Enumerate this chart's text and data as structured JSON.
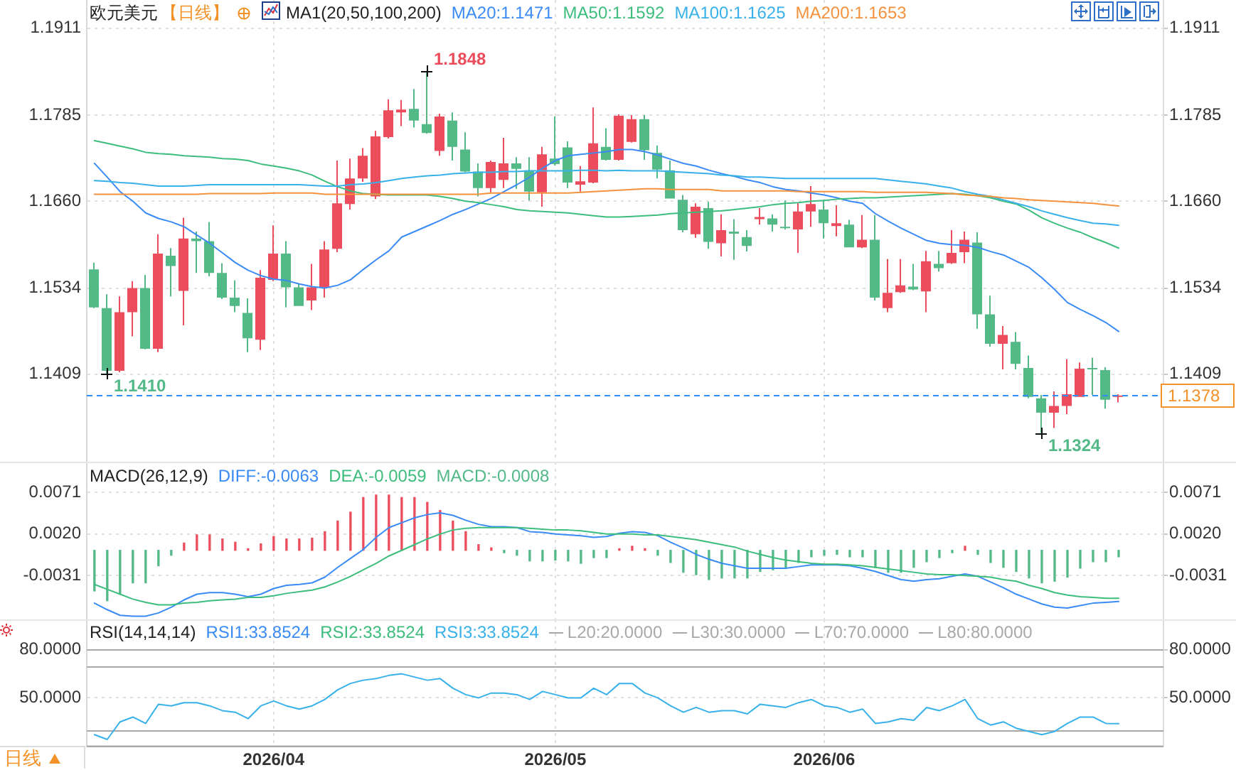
{
  "chart_data": [
    {
      "type": "candlestick",
      "title": "欧元美元",
      "subtitle": "【日线】",
      "legend_title": "MA1(20,50,100,200)",
      "legend": "top",
      "grid": true,
      "tick_labels": "y",
      "categories": [
        null,
        null,
        null,
        null,
        null,
        null,
        null,
        null,
        null,
        null,
        null,
        null,
        null,
        null,
        "2026/04",
        null,
        null,
        null,
        null,
        null,
        null,
        null,
        null,
        null,
        null,
        null,
        null,
        null,
        null,
        null,
        null,
        null,
        null,
        null,
        null,
        null,
        "2026/05",
        null,
        null,
        null,
        null,
        null,
        null,
        null,
        null,
        null,
        null,
        null,
        null,
        null,
        null,
        null,
        null,
        null,
        null,
        null,
        null,
        "2026/06",
        null,
        null,
        null,
        null,
        null,
        null,
        null,
        null,
        null,
        null,
        null,
        null,
        null,
        null,
        null,
        null,
        null,
        null,
        null,
        null,
        null,
        null,
        null
      ],
      "ohlc": [
        [
          1.1561,
          1.1571,
          1.1505,
          1.1506
        ],
        [
          1.1505,
          1.1525,
          1.141,
          1.1414
        ],
        [
          1.1414,
          1.1522,
          1.1412,
          1.1499
        ],
        [
          1.1499,
          1.1544,
          1.1464,
          1.1534
        ],
        [
          1.1534,
          1.1553,
          1.1445,
          1.1446
        ],
        [
          1.1446,
          1.1612,
          1.1441,
          1.1584
        ],
        [
          1.1581,
          1.1592,
          1.1522,
          1.1566
        ],
        [
          1.153,
          1.1636,
          1.148,
          1.1606
        ],
        [
          1.1606,
          1.1616,
          1.1556,
          1.1602
        ],
        [
          1.1602,
          1.163,
          1.1551,
          1.1556
        ],
        [
          1.1556,
          1.157,
          1.1518,
          1.152
        ],
        [
          1.152,
          1.1545,
          1.1499,
          1.1508
        ],
        [
          1.1498,
          1.1519,
          1.1441,
          1.1461
        ],
        [
          1.1459,
          1.156,
          1.1444,
          1.1549
        ],
        [
          1.1546,
          1.1625,
          1.1544,
          1.1584
        ],
        [
          1.1584,
          1.1602,
          1.1506,
          1.1535
        ],
        [
          1.1535,
          1.154,
          1.1508,
          1.1508
        ],
        [
          1.1516,
          1.1569,
          1.1502,
          1.1535
        ],
        [
          1.1535,
          1.1602,
          1.152,
          1.159
        ],
        [
          1.1591,
          1.1719,
          1.1586,
          1.1657
        ],
        [
          1.1656,
          1.1722,
          1.1648,
          1.1693
        ],
        [
          1.1693,
          1.1737,
          1.1688,
          1.1726
        ],
        [
          1.1667,
          1.1762,
          1.1663,
          1.1754
        ],
        [
          1.1753,
          1.1808,
          1.1751,
          1.1792
        ],
        [
          1.1789,
          1.1807,
          1.1769,
          1.1793
        ],
        [
          1.1794,
          1.1823,
          1.1767,
          1.1777
        ],
        [
          1.1772,
          1.1848,
          1.1758,
          1.1759
        ],
        [
          1.1733,
          1.1787,
          1.1726,
          1.1783
        ],
        [
          1.1777,
          1.1789,
          1.1719,
          1.1739
        ],
        [
          1.1735,
          1.176,
          1.1702,
          1.1703
        ],
        [
          1.1703,
          1.1715,
          1.1667,
          1.1679
        ],
        [
          1.1679,
          1.1719,
          1.1673,
          1.1717
        ],
        [
          1.1691,
          1.1752,
          1.1679,
          1.1715
        ],
        [
          1.1715,
          1.1724,
          1.1678,
          1.1707
        ],
        [
          1.1705,
          1.1724,
          1.1661,
          1.1674
        ],
        [
          1.1673,
          1.1739,
          1.1652,
          1.1728
        ],
        [
          1.1722,
          1.1783,
          1.1712,
          1.1714
        ],
        [
          1.1738,
          1.1747,
          1.1679,
          1.1687
        ],
        [
          1.1684,
          1.1711,
          1.1674,
          1.1689
        ],
        [
          1.1687,
          1.1796,
          1.1686,
          1.1744
        ],
        [
          1.1739,
          1.1766,
          1.1719,
          1.172
        ],
        [
          1.172,
          1.1786,
          1.1719,
          1.1784
        ],
        [
          1.1746,
          1.1785,
          1.1745,
          1.1779
        ],
        [
          1.1779,
          1.1785,
          1.172,
          1.1734
        ],
        [
          1.173,
          1.1741,
          1.1693,
          1.1706
        ],
        [
          1.1705,
          1.1719,
          1.1664,
          1.1664
        ],
        [
          1.1662,
          1.1669,
          1.1615,
          1.1618
        ],
        [
          1.1612,
          1.1657,
          1.1607,
          1.1652
        ],
        [
          1.165,
          1.1659,
          1.1591,
          1.1601
        ],
        [
          1.1599,
          1.1641,
          1.158,
          1.1618
        ],
        [
          1.1616,
          1.1634,
          1.1575,
          1.1613
        ],
        [
          1.1608,
          1.1618,
          1.1587,
          1.1595
        ],
        [
          1.1634,
          1.165,
          1.1626,
          1.1637
        ],
        [
          1.1635,
          1.1641,
          1.1616,
          1.1626
        ],
        [
          1.1623,
          1.1661,
          1.1619,
          1.1621
        ],
        [
          1.1619,
          1.1658,
          1.1585,
          1.1645
        ],
        [
          1.1645,
          1.1682,
          1.1623,
          1.1656
        ],
        [
          1.1648,
          1.1662,
          1.1606,
          1.1628
        ],
        [
          1.1624,
          1.1654,
          1.1609,
          1.1628
        ],
        [
          1.1626,
          1.1633,
          1.1593,
          1.1593
        ],
        [
          1.1593,
          1.164,
          1.1592,
          1.1604
        ],
        [
          1.1604,
          1.164,
          1.1516,
          1.152
        ],
        [
          1.1505,
          1.1576,
          1.1499,
          1.1527
        ],
        [
          1.1528,
          1.1576,
          1.1527,
          1.1538
        ],
        [
          1.1536,
          1.1569,
          1.1531,
          1.1532
        ],
        [
          1.1529,
          1.1588,
          1.1499,
          1.1573
        ],
        [
          1.1569,
          1.1588,
          1.1558,
          1.1563
        ],
        [
          1.157,
          1.1618,
          1.1569,
          1.1585
        ],
        [
          1.1586,
          1.1616,
          1.157,
          1.1604
        ],
        [
          1.16,
          1.1615,
          1.1475,
          1.1496
        ],
        [
          1.1496,
          1.1523,
          1.1449,
          1.1453
        ],
        [
          1.1453,
          1.1479,
          1.1416,
          1.1466
        ],
        [
          1.1456,
          1.147,
          1.1416,
          1.1424
        ],
        [
          1.1418,
          1.1436,
          1.1374,
          1.1376
        ],
        [
          1.1374,
          1.1379,
          1.1324,
          1.1353
        ],
        [
          1.1353,
          1.1384,
          1.1331,
          1.1363
        ],
        [
          1.1363,
          1.1431,
          1.1351,
          1.138
        ],
        [
          1.1376,
          1.1426,
          1.1376,
          1.1417
        ],
        [
          1.1418,
          1.1433,
          1.1379,
          1.1416
        ],
        [
          1.1415,
          1.1419,
          1.1359,
          1.1372
        ],
        [
          1.1376,
          1.138,
          1.1368,
          1.1378
        ]
      ],
      "colors": [
        "#52b987",
        "#52b987",
        "#ec4d5c",
        "#ec4d5c",
        "#52b987",
        "#ec4d5c",
        "#52b987",
        "#ec4d5c",
        "#52b987",
        "#52b987",
        "#52b987",
        "#52b987",
        "#52b987",
        "#ec4d5c",
        "#ec4d5c",
        "#52b987",
        "#52b987",
        "#ec4d5c",
        "#ec4d5c",
        "#ec4d5c",
        "#ec4d5c",
        "#ec4d5c",
        "#ec4d5c",
        "#ec4d5c",
        "#ec4d5c",
        "#52b987",
        "#52b987",
        "#ec4d5c",
        "#52b987",
        "#52b987",
        "#52b987",
        "#ec4d5c",
        "#ec4d5c",
        "#52b987",
        "#52b987",
        "#ec4d5c",
        "#52b987",
        "#52b987",
        "#ec4d5c",
        "#ec4d5c",
        "#52b987",
        "#ec4d5c",
        "#ec4d5c",
        "#52b987",
        "#52b987",
        "#52b987",
        "#52b987",
        "#ec4d5c",
        "#52b987",
        "#ec4d5c",
        "#52b987",
        "#52b987",
        "#ec4d5c",
        "#52b987",
        "#52b987",
        "#ec4d5c",
        "#ec4d5c",
        "#52b987",
        "#ec4d5c",
        "#52b987",
        "#ec4d5c",
        "#52b987",
        "#ec4d5c",
        "#ec4d5c",
        "#52b987",
        "#ec4d5c",
        "#52b987",
        "#ec4d5c",
        "#ec4d5c",
        "#52b987",
        "#52b987",
        "#ec4d5c",
        "#52b987",
        "#52b987",
        "#52b987",
        "#ec4d5c",
        "#ec4d5c",
        "#ec4d5c",
        "#52b987",
        "#52b987",
        "#ec4d5c"
      ],
      "series": [
        {
          "name": "MA20:1.1471",
          "type": "line",
          "color": "#3a8bf5",
          "values": [
            1.1715,
            1.1695,
            1.1674,
            1.166,
            1.1643,
            1.1635,
            1.163,
            1.1623,
            1.1611,
            1.1599,
            1.1585,
            1.1571,
            1.156,
            1.1552,
            1.1547,
            1.1545,
            1.154,
            1.1536,
            1.1534,
            1.1538,
            1.1546,
            1.1561,
            1.1575,
            1.1588,
            1.1608,
            1.1616,
            1.1624,
            1.1632,
            1.1641,
            1.1648,
            1.1656,
            1.1664,
            1.1674,
            1.1684,
            1.1695,
            1.1708,
            1.1719,
            1.1726,
            1.1728,
            1.173,
            1.1732,
            1.1735,
            1.1735,
            1.1732,
            1.1727,
            1.1721,
            1.1715,
            1.1711,
            1.1705,
            1.17,
            1.1696,
            1.1691,
            1.1687,
            1.1681,
            1.1677,
            1.1675,
            1.1672,
            1.1669,
            1.1665,
            1.166,
            1.1657,
            1.1642,
            1.1631,
            1.1621,
            1.1612,
            1.1603,
            1.1599,
            1.1597,
            1.1596,
            1.1593,
            1.1587,
            1.1582,
            1.1573,
            1.1564,
            1.1549,
            1.1532,
            1.1513,
            1.1503,
            1.1494,
            1.1484,
            1.1471
          ]
        },
        {
          "name": "MA50:1.1592",
          "type": "line",
          "color": "#3dbd7d",
          "values": [
            1.1748,
            1.1744,
            1.174,
            1.1736,
            1.1731,
            1.1729,
            1.1728,
            1.1726,
            1.1725,
            1.1724,
            1.1722,
            1.1721,
            1.1719,
            1.1714,
            1.1711,
            1.1708,
            1.1704,
            1.1698,
            1.1689,
            1.1681,
            1.1675,
            1.1671,
            1.167,
            1.1669,
            1.1669,
            1.1669,
            1.1669,
            1.1667,
            1.1664,
            1.166,
            1.1658,
            1.1655,
            1.1652,
            1.1648,
            1.1646,
            1.1645,
            1.1644,
            1.1643,
            1.1641,
            1.1639,
            1.1637,
            1.1637,
            1.1638,
            1.1639,
            1.164,
            1.1642,
            1.1643,
            1.1644,
            1.1645,
            1.1646,
            1.1648,
            1.165,
            1.1652,
            1.1655,
            1.1657,
            1.1658,
            1.166,
            1.1661,
            1.1663,
            1.1664,
            1.1665,
            1.1665,
            1.1666,
            1.1667,
            1.1668,
            1.1669,
            1.167,
            1.1671,
            1.167,
            1.1668,
            1.1665,
            1.166,
            1.1656,
            1.1647,
            1.1636,
            1.1628,
            1.1621,
            1.1615,
            1.1607,
            1.16,
            1.1592
          ]
        },
        {
          "name": "MA100:1.1625",
          "type": "line",
          "color": "#38b1ea",
          "values": [
            1.169,
            1.1689,
            1.1687,
            1.1686,
            1.1684,
            1.1682,
            1.1682,
            1.1682,
            1.1683,
            1.1684,
            1.1684,
            1.1684,
            1.1684,
            1.1684,
            1.1684,
            1.1684,
            1.1684,
            1.1683,
            1.1682,
            1.1682,
            1.1684,
            1.1685,
            1.1687,
            1.169,
            1.1693,
            1.1695,
            1.1697,
            1.1698,
            1.17,
            1.1701,
            1.1702,
            1.1702,
            1.1703,
            1.1703,
            1.1704,
            1.1704,
            1.1704,
            1.1704,
            1.1705,
            1.1705,
            1.1704,
            1.1705,
            1.1704,
            1.1704,
            1.1704,
            1.1703,
            1.1702,
            1.1701,
            1.17,
            1.1698,
            1.1697,
            1.1695,
            1.1695,
            1.1694,
            1.1693,
            1.1693,
            1.1693,
            1.1693,
            1.1693,
            1.1693,
            1.1693,
            1.1693,
            1.1691,
            1.1689,
            1.1687,
            1.1685,
            1.1682,
            1.1679,
            1.1674,
            1.167,
            1.1667,
            1.1662,
            1.1657,
            1.1652,
            1.1646,
            1.1641,
            1.1636,
            1.1632,
            1.1628,
            1.1627,
            1.1625
          ]
        },
        {
          "name": "MA200:1.1653",
          "type": "line",
          "color": "#f5923e",
          "values": [
            1.167,
            1.167,
            1.167,
            1.167,
            1.167,
            1.167,
            1.167,
            1.167,
            1.167,
            1.1671,
            1.1671,
            1.1671,
            1.1671,
            1.1671,
            1.1672,
            1.1672,
            1.1672,
            1.1672,
            1.167,
            1.167,
            1.167,
            1.167,
            1.167,
            1.167,
            1.167,
            1.167,
            1.167,
            1.167,
            1.167,
            1.167,
            1.167,
            1.1672,
            1.1672,
            1.1672,
            1.1672,
            1.1672,
            1.1672,
            1.1672,
            1.1673,
            1.1674,
            1.1675,
            1.1676,
            1.1677,
            1.1678,
            1.1678,
            1.1677,
            1.1677,
            1.1677,
            1.1677,
            1.1675,
            1.1675,
            1.1675,
            1.1675,
            1.1675,
            1.1675,
            1.1674,
            1.1674,
            1.1674,
            1.1674,
            1.1674,
            1.1674,
            1.1673,
            1.1673,
            1.1673,
            1.1673,
            1.1673,
            1.1672,
            1.1671,
            1.1669,
            1.1668,
            1.1667,
            1.1665,
            1.1664,
            1.1662,
            1.1661,
            1.166,
            1.1659,
            1.1658,
            1.1657,
            1.1655,
            1.1653
          ]
        }
      ],
      "ylim": [
        1.1282,
        1.1952
      ],
      "yticks": [
        1.1409,
        1.1534,
        {
          "value": 1.166,
          "label": "1.1660"
        },
        1.1785,
        1.1911
      ],
      "y2lim": [
        1.1282,
        1.1952
      ],
      "y2ticks": [
        1.1409,
        1.1534,
        {
          "value": 1.166,
          "label": "1.1660"
        },
        1.1785,
        1.1911
      ],
      "ref_lines": [
        {
          "axis": "y2",
          "value": 1.1378,
          "label": "1.1378",
          "color": "#2f8ef5",
          "line_style": "dashed"
        }
      ],
      "annotations": [
        "1.1848",
        "1.1410",
        "1.1324"
      ]
    },
    {
      "type": "bar",
      "title": "MACD(26,12,9)",
      "legend": "top left",
      "grid": true,
      "tick_labels": "y",
      "categories": [
        null,
        null,
        null,
        null,
        null,
        null,
        null,
        null,
        null,
        null,
        null,
        null,
        null,
        null,
        "2026/04",
        null,
        null,
        null,
        null,
        null,
        null,
        null,
        null,
        null,
        null,
        null,
        null,
        null,
        null,
        null,
        null,
        null,
        null,
        null,
        null,
        null,
        "2026/05",
        null,
        null,
        null,
        null,
        null,
        null,
        null,
        null,
        null,
        null,
        null,
        null,
        null,
        null,
        null,
        null,
        null,
        null,
        null,
        null,
        "2026/06",
        null,
        null,
        null,
        null,
        null,
        null,
        null,
        null,
        null,
        null,
        null,
        null,
        null,
        null,
        null,
        null,
        null,
        null,
        null,
        null,
        null,
        null,
        null
      ],
      "series": [
        {
          "name": "DIFF:-0.0063",
          "type": "line",
          "color": "#3a8bf5",
          "values": [
            -0.0065,
            -0.0073,
            -0.008,
            -0.0081,
            -0.0081,
            -0.0077,
            -0.007,
            -0.0061,
            -0.0054,
            -0.0052,
            -0.0052,
            -0.0054,
            -0.0057,
            -0.0054,
            -0.0047,
            -0.0043,
            -0.0042,
            -0.004,
            -0.0033,
            -0.0021,
            -0.001,
            0.0001,
            0.0016,
            0.0028,
            0.0034,
            0.004,
            0.0044,
            0.0046,
            0.0043,
            0.0037,
            0.0032,
            0.0029,
            0.0029,
            0.0028,
            0.0023,
            0.0022,
            0.002,
            0.0019,
            0.0018,
            0.0016,
            0.0017,
            0.0021,
            0.0023,
            0.0022,
            0.0018,
            0.001,
            0.0003,
            -0.0005,
            -0.0011,
            -0.0016,
            -0.0019,
            -0.0022,
            -0.0022,
            -0.0022,
            -0.0022,
            -0.002,
            -0.0018,
            -0.0018,
            -0.0018,
            -0.0019,
            -0.0022,
            -0.0026,
            -0.0031,
            -0.0036,
            -0.0038,
            -0.0036,
            -0.0035,
            -0.0032,
            -0.0029,
            -0.0032,
            -0.0039,
            -0.0046,
            -0.0054,
            -0.006,
            -0.0066,
            -0.007,
            -0.0071,
            -0.0068,
            -0.0065,
            -0.0064,
            -0.0063
          ]
        },
        {
          "name": "DEA:-0.0059",
          "type": "line",
          "color": "#3dbd7d",
          "values": [
            -0.0042,
            -0.0048,
            -0.0054,
            -0.006,
            -0.0064,
            -0.0067,
            -0.0067,
            -0.0065,
            -0.0064,
            -0.0062,
            -0.0061,
            -0.006,
            -0.0058,
            -0.0058,
            -0.0056,
            -0.0053,
            -0.0051,
            -0.0049,
            -0.0045,
            -0.0039,
            -0.0032,
            -0.0024,
            -0.0016,
            -0.0007,
            0,
            0.0007,
            0.0014,
            0.002,
            0.0025,
            0.0027,
            0.0028,
            0.0028,
            0.0028,
            0.0028,
            0.0027,
            0.0026,
            0.0025,
            0.0025,
            0.0024,
            0.0022,
            0.002,
            0.002,
            0.002,
            0.0019,
            0.0019,
            0.0017,
            0.0015,
            0.0013,
            0.001,
            0.0007,
            0.0004,
            -0.0001,
            -0.0005,
            -0.0009,
            -0.0012,
            -0.0014,
            -0.0016,
            -0.0017,
            -0.0017,
            -0.0018,
            -0.0019,
            -0.0021,
            -0.0023,
            -0.0025,
            -0.0027,
            -0.0029,
            -0.003,
            -0.003,
            -0.0031,
            -0.0032,
            -0.0033,
            -0.0036,
            -0.0038,
            -0.0043,
            -0.0047,
            -0.0052,
            -0.0055,
            -0.0057,
            -0.0058,
            -0.0059,
            -0.0059
          ]
        },
        {
          "name": "MACD:-0.0008",
          "colors": [
            "#52b987",
            "#52b987",
            "#52b987",
            "#52b987",
            "#52b987",
            "#52b987",
            "#52b987",
            "#ec4d5c",
            "#ec4d5c",
            "#ec4d5c",
            "#ec4d5c",
            "#ec4d5c",
            "#ec4d5c",
            "#ec4d5c",
            "#ec4d5c",
            "#ec4d5c",
            "#ec4d5c",
            "#ec4d5c",
            "#ec4d5c",
            "#ec4d5c",
            "#ec4d5c",
            "#ec4d5c",
            "#ec4d5c",
            "#ec4d5c",
            "#ec4d5c",
            "#ec4d5c",
            "#ec4d5c",
            "#ec4d5c",
            "#ec4d5c",
            "#ec4d5c",
            "#ec4d5c",
            "#ec4d5c",
            "#52b987",
            "#52b987",
            "#52b987",
            "#52b987",
            "#52b987",
            "#52b987",
            "#52b987",
            "#52b987",
            "#52b987",
            "#ec4d5c",
            "#ec4d5c",
            "#ec4d5c",
            "#52b987",
            "#52b987",
            "#52b987",
            "#52b987",
            "#52b987",
            "#52b987",
            "#52b987",
            "#52b987",
            "#52b987",
            "#52b987",
            "#52b987",
            "#52b987",
            "#52b987",
            "#52b987",
            "#52b987",
            "#52b987",
            "#52b987",
            "#52b987",
            "#52b987",
            "#52b987",
            "#52b987",
            "#52b987",
            "#52b987",
            "#52b987",
            "#ec4d5c",
            "#52b987",
            "#52b987",
            "#52b987",
            "#52b987",
            "#52b987",
            "#52b987",
            "#52b987",
            "#52b987",
            "#52b987",
            "#52b987",
            "#52b987",
            "#52b987"
          ],
          "values": [
            -0.005,
            -0.0062,
            -0.0054,
            -0.004,
            -0.004,
            -0.0019,
            -0.0006,
            0.0009,
            0.0019,
            0.0019,
            0.0014,
            0.001,
            0.0002,
            0.0008,
            0.0017,
            0.0014,
            0.0014,
            0.0015,
            0.0023,
            0.0036,
            0.0047,
            0.0065,
            0.0068,
            0.0068,
            0.0065,
            0.0065,
            0.0059,
            0.0049,
            0.0036,
            0.0023,
            0.0007,
            0.0003,
            -0.0003,
            -0.0006,
            -0.0013,
            -0.0013,
            -0.0012,
            -0.0013,
            -0.0016,
            -0.0009,
            -0.0009,
            0.0002,
            0.0005,
            0.0002,
            -0.0006,
            -0.0015,
            -0.0027,
            -0.003,
            -0.0036,
            -0.0034,
            -0.0034,
            -0.0034,
            -0.0026,
            -0.0024,
            -0.0021,
            -0.0015,
            -0.0008,
            -0.0006,
            -0.0005,
            -0.0008,
            -0.0008,
            -0.0021,
            -0.0027,
            -0.0027,
            -0.0021,
            -0.0014,
            -0.0009,
            -0.0003,
            0.0005,
            -0.0005,
            -0.0015,
            -0.0021,
            -0.0026,
            -0.0034,
            -0.004,
            -0.0038,
            -0.0033,
            -0.0022,
            -0.0014,
            -0.0014,
            -0.0008
          ]
        }
      ],
      "ylim": [
        -0.0085,
        0.0109
      ],
      "yticks": [
        -0.0031,
        {
          "value": 0.002,
          "label": "0.0020"
        },
        0.0071
      ],
      "y2lim": [
        -0.0085,
        0.0109
      ],
      "y2ticks": [
        -0.0031,
        {
          "value": 0.002,
          "label": "0.0020"
        },
        0.0071
      ]
    },
    {
      "type": "line",
      "title": "RSI(14,14,14)",
      "legend": "top",
      "grid": true,
      "categories": [
        null,
        null,
        null,
        null,
        null,
        null,
        null,
        null,
        null,
        null,
        null,
        null,
        null,
        null,
        "2026/04",
        null,
        null,
        null,
        null,
        null,
        null,
        null,
        null,
        null,
        null,
        null,
        null,
        null,
        null,
        null,
        null,
        null,
        null,
        null,
        null,
        null,
        "2026/05",
        null,
        null,
        null,
        null,
        null,
        null,
        null,
        null,
        null,
        null,
        null,
        null,
        null,
        null,
        null,
        null,
        null,
        null,
        null,
        null,
        "2026/06",
        null,
        null,
        null,
        null,
        null,
        null,
        null,
        null,
        null,
        null,
        null,
        null,
        null,
        null,
        null,
        null,
        null,
        null,
        null,
        null,
        null,
        null,
        null
      ],
      "series": [
        {
          "name": "RSI1:33.8524",
          "color": "#3a8bf5",
          "values": [
            null,
            null,
            null,
            null,
            null,
            null,
            null,
            null,
            null,
            null,
            null,
            null,
            null,
            null,
            null,
            null,
            null,
            null,
            null,
            null,
            null,
            null,
            null,
            null,
            null,
            null,
            null,
            null,
            null,
            null,
            null,
            null,
            null,
            null,
            null,
            null,
            null,
            null,
            null,
            null,
            null,
            null,
            null,
            null,
            null,
            null,
            null,
            null,
            null,
            null,
            null,
            null,
            null,
            null,
            null,
            null,
            null,
            null,
            null,
            null,
            null,
            null,
            null,
            null,
            null,
            null,
            null,
            null,
            null,
            null,
            null,
            null,
            null,
            null,
            null,
            null,
            null,
            null,
            null,
            null,
            null
          ]
        },
        {
          "name": "RSI2:33.8524",
          "color": "#3dbd7d",
          "values": [
            null,
            null,
            null,
            null,
            null,
            null,
            null,
            null,
            null,
            null,
            null,
            null,
            null,
            null,
            null,
            null,
            null,
            null,
            null,
            null,
            null,
            null,
            null,
            null,
            null,
            null,
            null,
            null,
            null,
            null,
            null,
            null,
            null,
            null,
            null,
            null,
            null,
            null,
            null,
            null,
            null,
            null,
            null,
            null,
            null,
            null,
            null,
            null,
            null,
            null,
            null,
            null,
            null,
            null,
            null,
            null,
            null,
            null,
            null,
            null,
            null,
            null,
            null,
            null,
            null,
            null,
            null,
            null,
            null,
            null,
            null,
            null,
            null,
            null,
            null,
            null,
            null,
            null,
            null,
            null,
            null
          ]
        },
        {
          "name": "RSI3:33.8524",
          "color": "#38b1ea",
          "values": [
            27,
            24,
            35,
            38,
            34,
            46,
            45,
            47,
            47,
            45,
            42,
            41,
            37,
            45,
            48,
            45,
            43,
            45,
            49,
            55,
            59,
            61,
            62,
            64,
            65,
            63,
            61,
            62,
            56,
            52,
            50,
            53,
            53,
            52,
            49,
            54,
            52,
            50,
            50,
            56,
            52,
            59,
            59,
            53,
            50,
            45,
            41,
            44,
            41,
            42,
            42,
            40,
            46,
            45,
            44,
            47,
            49,
            45,
            44,
            41,
            43,
            34,
            35,
            37,
            36,
            44,
            42,
            45,
            49,
            37,
            33,
            35,
            31,
            29,
            27,
            29,
            34,
            38,
            38,
            34,
            33.8524
          ]
        }
      ],
      "ylim": [
        20,
        99
      ],
      "yticks": [
        {
          "value": 50,
          "label": "50.0000"
        },
        {
          "value": 80,
          "label": "80.0000"
        }
      ],
      "y2lim": [
        20,
        99
      ],
      "y2ticks": [
        {
          "value": 50,
          "label": "50.0000"
        },
        {
          "value": 80,
          "label": "80.0000"
        }
      ],
      "ref_lines": [
        {
          "axis": "y",
          "value": 20,
          "label": "L20:20.0000",
          "color": "#a8a8a8"
        },
        {
          "axis": "y",
          "value": 30,
          "label": "L30:30.0000",
          "color": "#a8a8a8"
        },
        {
          "axis": "y",
          "value": 70,
          "label": "L70:70.0000",
          "color": "#a8a8a8"
        },
        {
          "axis": "y",
          "value": 80,
          "label": "L80:80.0000",
          "color": "#a8a8a8"
        }
      ],
      "annotations": [
        "日线"
      ]
    }
  ]
}
